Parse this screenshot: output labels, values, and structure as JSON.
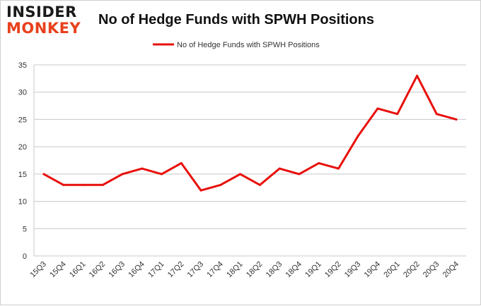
{
  "brand": {
    "top": "INSIDER",
    "bottom": "MONKEY"
  },
  "colors": {
    "series": "#e8100c",
    "grid": "#c8c8c8",
    "brand_accent": "#e8401c"
  },
  "chart_data": {
    "type": "line",
    "title": "No of Hedge Funds with SPWH Positions",
    "xlabel": "",
    "ylabel": "",
    "ylim": [
      0,
      35
    ],
    "yticks": [
      0,
      5,
      10,
      15,
      20,
      25,
      30,
      35
    ],
    "grid": true,
    "legend_position": "top-center",
    "categories": [
      "15Q3",
      "15Q4",
      "16Q1",
      "16Q2",
      "16Q3",
      "16Q4",
      "17Q1",
      "17Q2",
      "17Q3",
      "17Q4",
      "18Q1",
      "18Q2",
      "18Q3",
      "18Q4",
      "19Q1",
      "19Q2",
      "19Q3",
      "19Q4",
      "20Q1",
      "20Q2",
      "20Q3",
      "20Q4"
    ],
    "series": [
      {
        "name": "No of Hedge Funds with SPWH Positions",
        "values": [
          15,
          13,
          13,
          13,
          15,
          16,
          15,
          17,
          12,
          13,
          15,
          13,
          16,
          15,
          17,
          16,
          22,
          27,
          26,
          33,
          26,
          25
        ]
      }
    ]
  }
}
